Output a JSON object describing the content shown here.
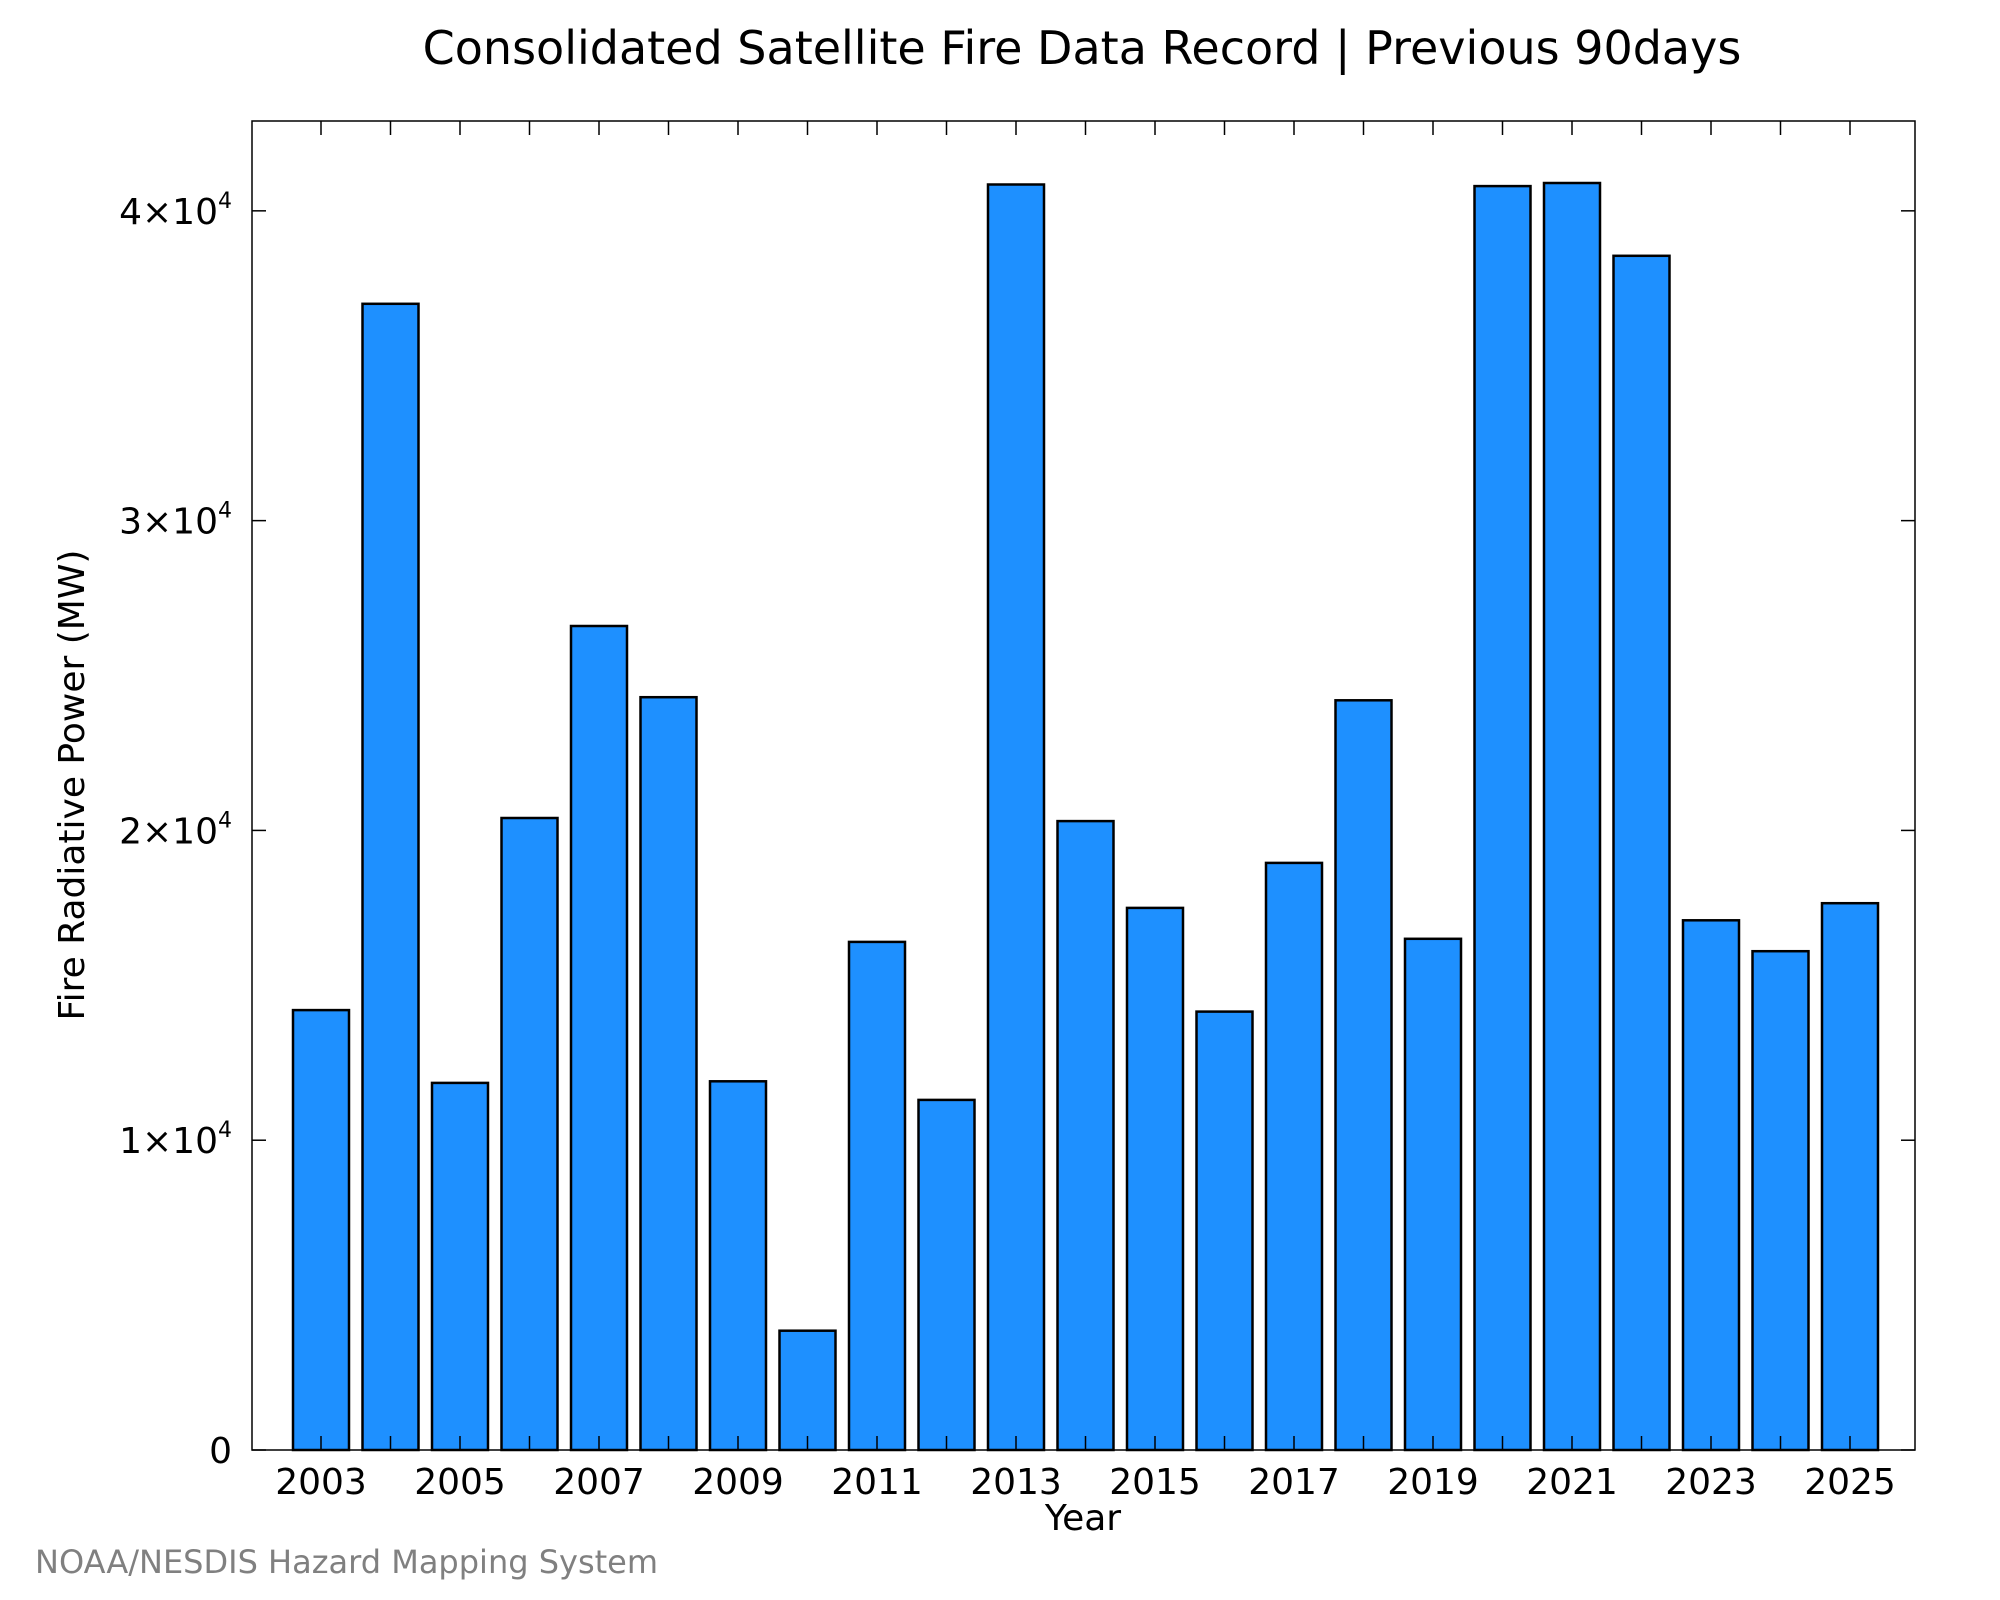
{
  "chart_data": {
    "type": "bar",
    "title": "Consolidated Satellite Fire Data Record | Previous 90days",
    "xlabel": "Year",
    "ylabel": "Fire Radiative Power (MW)",
    "credit": "NOAA/NESDIS Hazard Mapping System",
    "bar_color": "#1e90ff",
    "bar_edge_color": "#000000",
    "ylim": [
      0,
      42900
    ],
    "grid": false,
    "categories": [
      "2003",
      "2004",
      "2005",
      "2006",
      "2007",
      "2008",
      "2009",
      "2010",
      "2011",
      "2012",
      "2013",
      "2014",
      "2015",
      "2016",
      "2017",
      "2018",
      "2019",
      "2020",
      "2021",
      "2022",
      "2023",
      "2024",
      "2025"
    ],
    "values": [
      14200,
      37000,
      11850,
      20400,
      26600,
      24300,
      11900,
      3850,
      16400,
      11300,
      40850,
      20300,
      17500,
      14150,
      18950,
      24200,
      16500,
      40800,
      40900,
      38550,
      17100,
      16100,
      17650
    ],
    "x_tick_labels": [
      "2003",
      "2005",
      "2007",
      "2009",
      "2011",
      "2013",
      "2015",
      "2017",
      "2019",
      "2021",
      "2023",
      "2025"
    ],
    "y_ticks": [
      {
        "value": 0,
        "mantissa": "0",
        "exponent": ""
      },
      {
        "value": 10000,
        "mantissa": "1×10",
        "exponent": "4"
      },
      {
        "value": 20000,
        "mantissa": "2×10",
        "exponent": "4"
      },
      {
        "value": 30000,
        "mantissa": "3×10",
        "exponent": "4"
      },
      {
        "value": 40000,
        "mantissa": "4×10",
        "exponent": "4"
      }
    ]
  }
}
